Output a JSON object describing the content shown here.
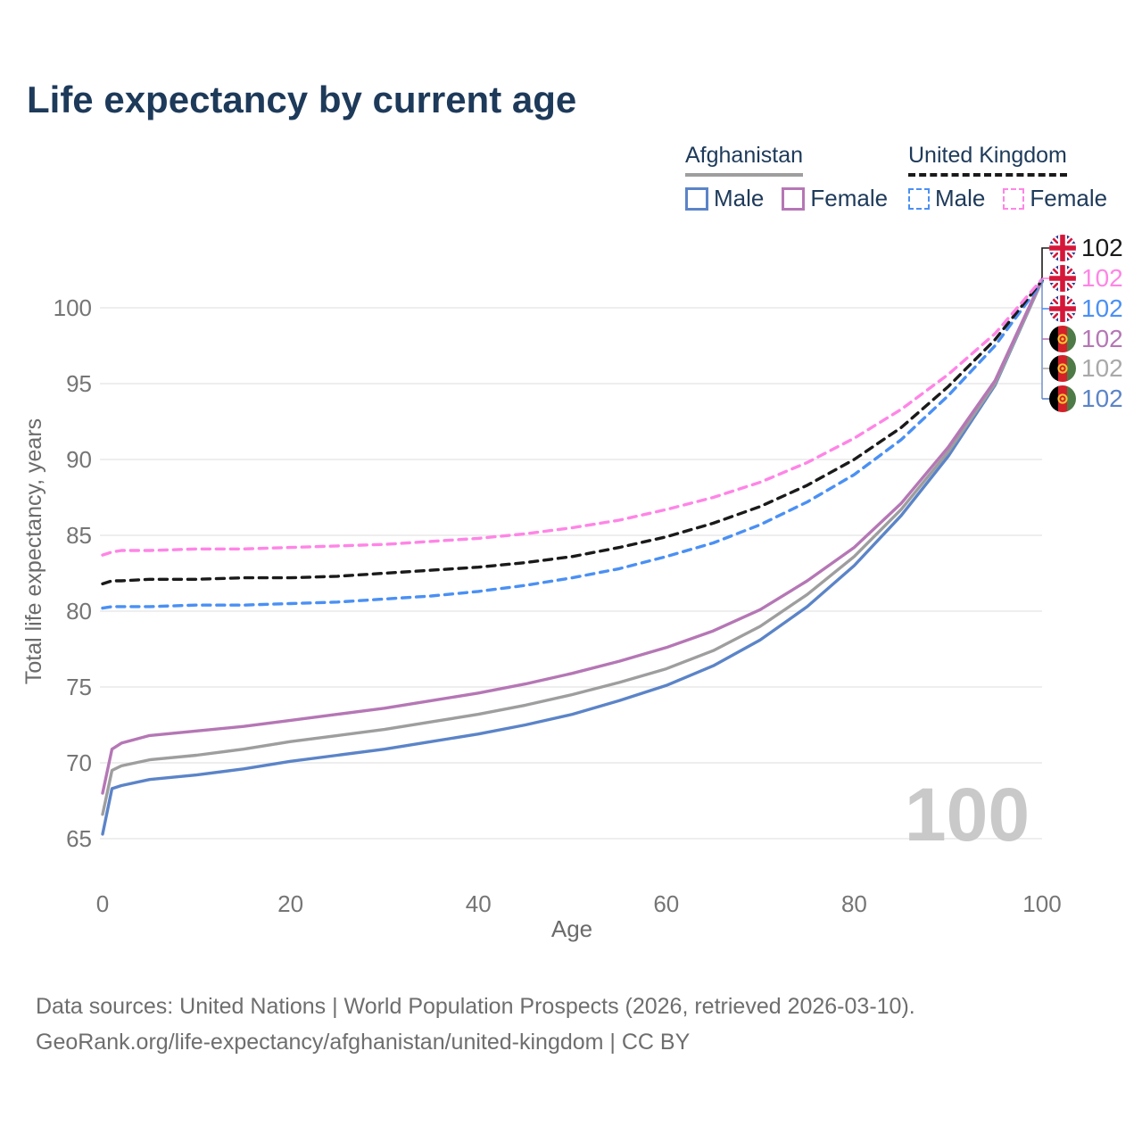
{
  "title": "Life expectancy by current age",
  "legend": {
    "groups": [
      {
        "label": "Afghanistan",
        "line_style": "solid",
        "underline_color": "#9e9e9e",
        "items": [
          {
            "label": "Male",
            "color": "#5b84c8"
          },
          {
            "label": "Female",
            "color": "#b577b5"
          }
        ]
      },
      {
        "label": "United Kingdom",
        "line_style": "dashed",
        "underline_color": "#1a1a1a",
        "items": [
          {
            "label": "Male",
            "color": "#4a90f4"
          },
          {
            "label": "Female",
            "color": "#ff85e6"
          }
        ]
      }
    ]
  },
  "age_counter": "100",
  "end_labels": [
    {
      "value": "102",
      "flag": "uk-flag-icon",
      "color": "#1a1a1a"
    },
    {
      "value": "102",
      "flag": "uk-flag-icon",
      "color": "#ff85e6"
    },
    {
      "value": "102",
      "flag": "uk-flag-icon",
      "color": "#4a90f4"
    },
    {
      "value": "102",
      "flag": "afghanistan-flag-icon",
      "color": "#b577b5"
    },
    {
      "value": "102",
      "flag": "afghanistan-flag-icon",
      "color": "#a9a9a9"
    },
    {
      "value": "102",
      "flag": "afghanistan-flag-icon",
      "color": "#5b84c8"
    }
  ],
  "footer": {
    "line1": "Data sources: United Nations | World Population Prospects (2026, retrieved 2026-03-10).",
    "line2": "GeoRank.org/life-expectancy/afghanistan/united-kingdom | CC BY"
  },
  "chart_data": {
    "type": "line",
    "title": "Life expectancy by current age",
    "xlabel": "Age",
    "ylabel": "Total life expectancy, years",
    "xlim": [
      0,
      100
    ],
    "ylim": [
      63.5,
      103
    ],
    "x_ticks": [
      0,
      20,
      40,
      60,
      80,
      100
    ],
    "y_ticks": [
      65,
      70,
      75,
      80,
      85,
      90,
      95,
      100
    ],
    "grid": true,
    "legend_position": "top-right",
    "x": [
      0,
      1,
      2,
      5,
      10,
      15,
      20,
      25,
      30,
      35,
      40,
      45,
      50,
      55,
      60,
      65,
      70,
      75,
      80,
      85,
      90,
      95,
      100
    ],
    "series": [
      {
        "name": "Afghanistan Male",
        "color": "#5b84c8",
        "dash": false,
        "values": [
          65.3,
          68.3,
          68.5,
          68.9,
          69.2,
          69.6,
          70.1,
          70.5,
          70.9,
          71.4,
          71.9,
          72.5,
          73.2,
          74.1,
          75.1,
          76.4,
          78.1,
          80.3,
          83.0,
          86.3,
          90.2,
          94.9,
          101.8
        ]
      },
      {
        "name": "Afghanistan Both sexes",
        "color": "#9e9e9e",
        "dash": false,
        "values": [
          66.6,
          69.5,
          69.8,
          70.2,
          70.5,
          70.9,
          71.4,
          71.8,
          72.2,
          72.7,
          73.2,
          73.8,
          74.5,
          75.3,
          76.2,
          77.4,
          79.0,
          81.1,
          83.6,
          86.7,
          90.5,
          95.0,
          101.8
        ]
      },
      {
        "name": "Afghanistan Female",
        "color": "#b577b5",
        "dash": false,
        "values": [
          68.0,
          70.9,
          71.3,
          71.8,
          72.1,
          72.4,
          72.8,
          73.2,
          73.6,
          74.1,
          74.6,
          75.2,
          75.9,
          76.7,
          77.6,
          78.7,
          80.1,
          82.0,
          84.2,
          87.1,
          90.8,
          95.2,
          101.9
        ]
      },
      {
        "name": "United Kingdom Male",
        "color": "#4a90f4",
        "dash": true,
        "values": [
          80.2,
          80.3,
          80.3,
          80.3,
          80.4,
          80.4,
          80.5,
          80.6,
          80.8,
          81.0,
          81.3,
          81.7,
          82.2,
          82.8,
          83.6,
          84.5,
          85.7,
          87.2,
          89.0,
          91.3,
          94.2,
          97.5,
          101.7
        ]
      },
      {
        "name": "United Kingdom Both sexes",
        "color": "#1a1a1a",
        "dash": true,
        "values": [
          81.8,
          82.0,
          82.0,
          82.1,
          82.1,
          82.2,
          82.2,
          82.3,
          82.5,
          82.7,
          82.9,
          83.2,
          83.6,
          84.2,
          84.9,
          85.8,
          86.9,
          88.3,
          90.0,
          92.1,
          94.8,
          97.9,
          101.8
        ]
      },
      {
        "name": "United Kingdom Female",
        "color": "#ff85e6",
        "dash": true,
        "values": [
          83.7,
          83.9,
          84.0,
          84.0,
          84.1,
          84.1,
          84.2,
          84.3,
          84.4,
          84.6,
          84.8,
          85.1,
          85.5,
          86.0,
          86.7,
          87.5,
          88.5,
          89.8,
          91.4,
          93.3,
          95.6,
          98.3,
          101.9
        ]
      }
    ]
  }
}
